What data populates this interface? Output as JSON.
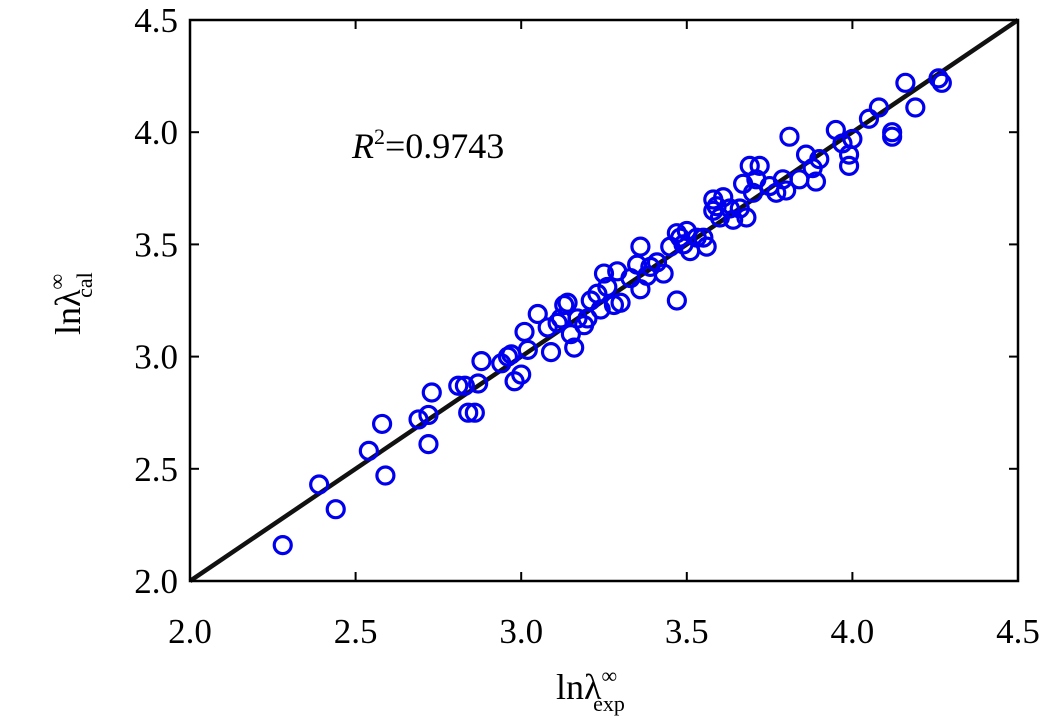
{
  "chart_data": {
    "type": "scatter",
    "xlim": [
      2.0,
      4.5
    ],
    "ylim": [
      2.0,
      4.5
    ],
    "xticks": [
      "2.0",
      "2.5",
      "3.0",
      "3.5",
      "4.0",
      "4.5"
    ],
    "yticks": [
      "2.0",
      "2.5",
      "3.0",
      "3.5",
      "4.0",
      "4.5"
    ],
    "xlabel": {
      "main": "lnλ",
      "sup": "∞",
      "sub": "exp"
    },
    "ylabel": {
      "main": "lnλ",
      "sup": "∞",
      "sub": "cal"
    },
    "annotation": {
      "italic": "R",
      "sup": "2",
      "rest": "=0.9743"
    },
    "marker_color": "#0000ee",
    "line_color": "#111111",
    "fit_line": {
      "x": [
        2.0,
        4.5
      ],
      "y": [
        2.0,
        4.5
      ]
    },
    "points": [
      [
        2.28,
        2.16
      ],
      [
        2.39,
        2.43
      ],
      [
        2.44,
        2.32
      ],
      [
        2.54,
        2.58
      ],
      [
        2.58,
        2.7
      ],
      [
        2.59,
        2.47
      ],
      [
        2.69,
        2.72
      ],
      [
        2.72,
        2.74
      ],
      [
        2.72,
        2.61
      ],
      [
        2.73,
        2.84
      ],
      [
        2.81,
        2.87
      ],
      [
        2.83,
        2.87
      ],
      [
        2.84,
        2.75
      ],
      [
        2.86,
        2.75
      ],
      [
        2.87,
        2.88
      ],
      [
        2.88,
        2.98
      ],
      [
        2.94,
        2.97
      ],
      [
        2.96,
        3.0
      ],
      [
        2.97,
        3.01
      ],
      [
        2.98,
        2.89
      ],
      [
        3.0,
        2.92
      ],
      [
        3.01,
        3.11
      ],
      [
        3.02,
        3.03
      ],
      [
        3.05,
        3.19
      ],
      [
        3.08,
        3.13
      ],
      [
        3.09,
        3.02
      ],
      [
        3.11,
        3.15
      ],
      [
        3.12,
        3.17
      ],
      [
        3.13,
        3.23
      ],
      [
        3.14,
        3.24
      ],
      [
        3.15,
        3.1
      ],
      [
        3.16,
        3.04
      ],
      [
        3.17,
        3.17
      ],
      [
        3.19,
        3.14
      ],
      [
        3.2,
        3.17
      ],
      [
        3.21,
        3.25
      ],
      [
        3.23,
        3.28
      ],
      [
        3.24,
        3.21
      ],
      [
        3.25,
        3.37
      ],
      [
        3.26,
        3.31
      ],
      [
        3.28,
        3.23
      ],
      [
        3.29,
        3.38
      ],
      [
        3.3,
        3.24
      ],
      [
        3.33,
        3.35
      ],
      [
        3.35,
        3.41
      ],
      [
        3.36,
        3.3
      ],
      [
        3.36,
        3.49
      ],
      [
        3.38,
        3.36
      ],
      [
        3.39,
        3.4
      ],
      [
        3.41,
        3.42
      ],
      [
        3.43,
        3.37
      ],
      [
        3.45,
        3.49
      ],
      [
        3.47,
        3.55
      ],
      [
        3.47,
        3.25
      ],
      [
        3.48,
        3.53
      ],
      [
        3.49,
        3.5
      ],
      [
        3.5,
        3.56
      ],
      [
        3.51,
        3.47
      ],
      [
        3.53,
        3.53
      ],
      [
        3.55,
        3.53
      ],
      [
        3.56,
        3.49
      ],
      [
        3.58,
        3.65
      ],
      [
        3.58,
        3.7
      ],
      [
        3.59,
        3.67
      ],
      [
        3.6,
        3.62
      ],
      [
        3.61,
        3.71
      ],
      [
        3.63,
        3.66
      ],
      [
        3.64,
        3.61
      ],
      [
        3.66,
        3.66
      ],
      [
        3.67,
        3.77
      ],
      [
        3.68,
        3.62
      ],
      [
        3.69,
        3.85
      ],
      [
        3.7,
        3.73
      ],
      [
        3.71,
        3.79
      ],
      [
        3.72,
        3.85
      ],
      [
        3.75,
        3.76
      ],
      [
        3.77,
        3.73
      ],
      [
        3.79,
        3.79
      ],
      [
        3.8,
        3.74
      ],
      [
        3.81,
        3.98
      ],
      [
        3.84,
        3.79
      ],
      [
        3.86,
        3.9
      ],
      [
        3.88,
        3.84
      ],
      [
        3.89,
        3.78
      ],
      [
        3.9,
        3.88
      ],
      [
        3.95,
        4.01
      ],
      [
        3.97,
        3.95
      ],
      [
        3.99,
        3.9
      ],
      [
        3.99,
        3.85
      ],
      [
        4.0,
        3.97
      ],
      [
        4.05,
        4.06
      ],
      [
        4.08,
        4.11
      ],
      [
        4.12,
        4.0
      ],
      [
        4.12,
        3.98
      ],
      [
        4.16,
        4.22
      ],
      [
        4.19,
        4.11
      ],
      [
        4.26,
        4.24
      ],
      [
        4.27,
        4.22
      ]
    ]
  }
}
